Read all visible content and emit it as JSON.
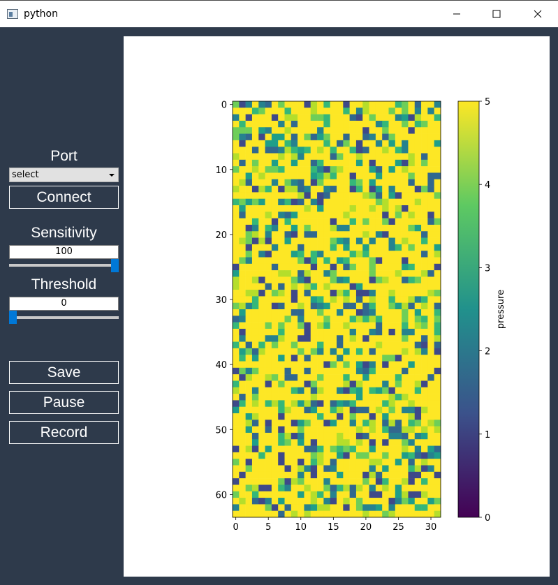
{
  "window": {
    "title": "python"
  },
  "controls": {
    "port_label": "Port",
    "port_select": "select",
    "connect": "Connect",
    "sensitivity_label": "Sensitivity",
    "sensitivity_value": "100",
    "sensitivity_level": 1.0,
    "threshold_label": "Threshold",
    "threshold_value": "0",
    "threshold_level": 0.0,
    "save": "Save",
    "pause": "Pause",
    "record": "Record"
  },
  "chart_data": {
    "type": "heatmap",
    "rows": 64,
    "cols": 32,
    "x_ticks": [
      "0",
      "5",
      "10",
      "15",
      "20",
      "25",
      "30"
    ],
    "y_ticks": [
      "0",
      "10",
      "20",
      "30",
      "40",
      "50",
      "60"
    ],
    "colorbar_ticks": [
      "0",
      "1",
      "2",
      "3",
      "4",
      "5"
    ],
    "colorbar_label": "pressure",
    "vmin": 0,
    "vmax": 5,
    "colormap": "viridis",
    "dominant_value": 5
  }
}
